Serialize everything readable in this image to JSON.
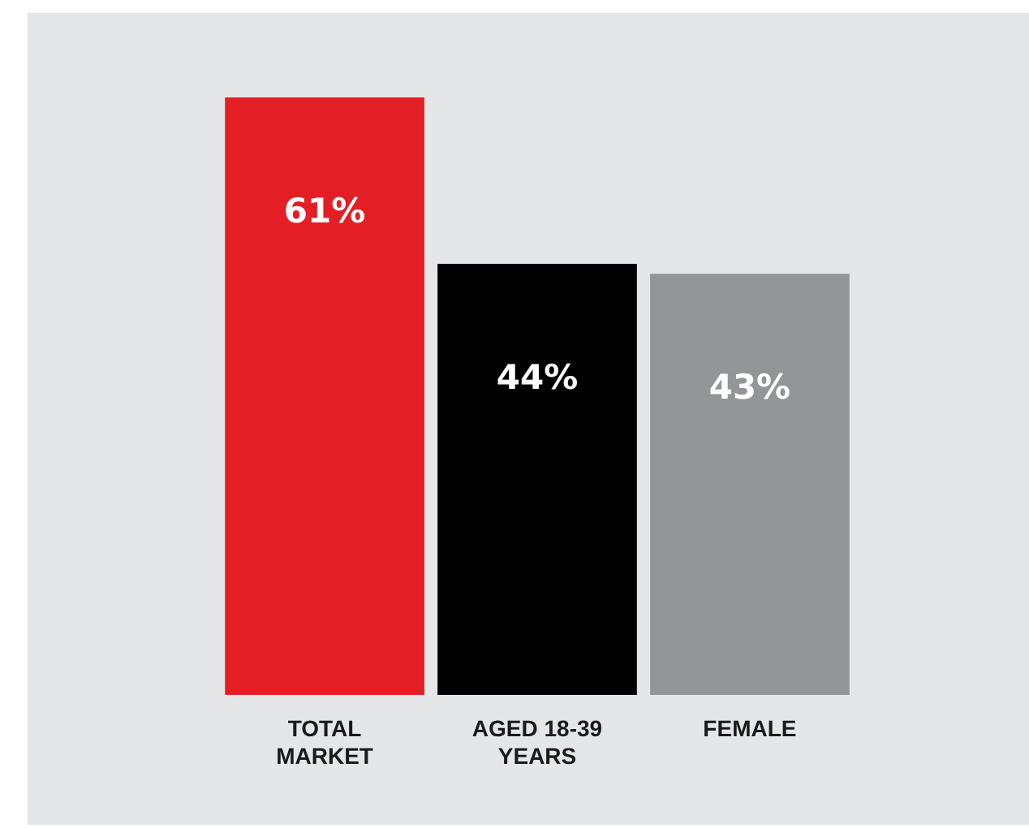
{
  "chart_data": {
    "type": "bar",
    "categories": [
      "TOTAL MARKET",
      "AGED 18-39 YEARS",
      "FEMALE"
    ],
    "values": [
      61,
      44,
      43
    ],
    "colors": [
      "#e31e24",
      "#000000",
      "#939598"
    ],
    "value_labels": [
      "61%",
      "44%",
      "43%"
    ]
  }
}
